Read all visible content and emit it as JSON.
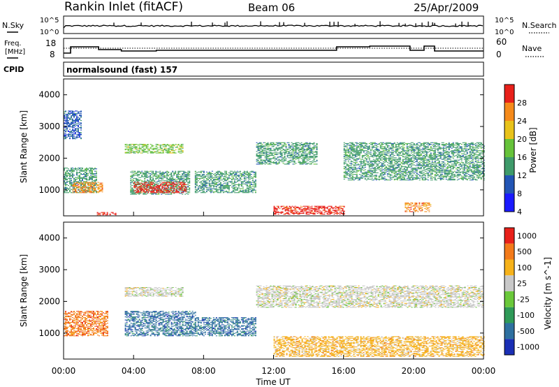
{
  "header": {
    "station": "Rankin Inlet (fitACF)",
    "beam": "Beam 06",
    "date": "25/Apr/2009"
  },
  "nsky_panel": {
    "label": "N.Sky",
    "left_ticks": [
      "10^5",
      "10^0"
    ],
    "right_ticks": [
      "10^5",
      "10^0"
    ],
    "right_label": "N.Search"
  },
  "freq_panel": {
    "label_line1": "Freq.",
    "label_line2": "[MHz]",
    "left_ticks": [
      "18",
      "8"
    ],
    "right_ticks": [
      "60",
      "0"
    ],
    "right_label": "Nave"
  },
  "cpid_panel": {
    "label": "CPID",
    "mode": "normalsound (fast) 157"
  },
  "chart_data": [
    {
      "type": "heatmap",
      "title": "Power",
      "ylabel": "Slant Range [km]",
      "xlabel": "Time UT",
      "x_ticks": [
        "00:00",
        "04:00",
        "08:00",
        "12:00",
        "16:00",
        "20:00",
        "00:00"
      ],
      "x_range_hours": [
        0,
        24
      ],
      "y_ticks": [
        1000,
        2000,
        3000,
        4000
      ],
      "y_range_km": [
        180,
        4500
      ],
      "colorbar": {
        "label": "Power [dB]",
        "ticks": [
          "4",
          "8",
          "12",
          "16",
          "20",
          "24",
          "28"
        ],
        "colors": [
          "#1a1aff",
          "#2255b5",
          "#3e9a6a",
          "#66c23a",
          "#e8c21a",
          "#f58a1a",
          "#e8201a"
        ]
      },
      "regions": [
        {
          "t0": 0.0,
          "t1": 1.9,
          "r0": 900,
          "r1": 1700,
          "level": 2
        },
        {
          "t0": 0.5,
          "t1": 2.2,
          "r0": 900,
          "r1": 1250,
          "level": 5
        },
        {
          "t0": 1.9,
          "t1": 3.0,
          "r0": 200,
          "r1": 300,
          "level": 6
        },
        {
          "t0": 3.8,
          "t1": 7.2,
          "r0": 850,
          "r1": 1600,
          "level": 2
        },
        {
          "t0": 4.0,
          "t1": 7.0,
          "r0": 900,
          "r1": 1250,
          "level": 6
        },
        {
          "t0": 3.5,
          "t1": 6.8,
          "r0": 2150,
          "r1": 2450,
          "level": 3
        },
        {
          "t0": 7.5,
          "t1": 11.0,
          "r0": 900,
          "r1": 1600,
          "level": 2
        },
        {
          "t0": 11.0,
          "t1": 14.5,
          "r0": 1800,
          "r1": 2500,
          "level": 2
        },
        {
          "t0": 12.0,
          "t1": 16.0,
          "r0": 220,
          "r1": 480,
          "level": 6
        },
        {
          "t0": 16.0,
          "t1": 24.0,
          "r0": 1300,
          "r1": 2500,
          "level": 2
        },
        {
          "t0": 19.5,
          "t1": 21.0,
          "r0": 300,
          "r1": 600,
          "level": 5
        },
        {
          "t0": 0.0,
          "t1": 1.0,
          "r0": 2600,
          "r1": 3500,
          "level": 1
        }
      ]
    },
    {
      "type": "heatmap",
      "title": "Velocity",
      "ylabel": "Slant Range [km]",
      "xlabel": "Time UT",
      "x_ticks": [
        "00:00",
        "04:00",
        "08:00",
        "12:00",
        "16:00",
        "20:00",
        "00:00"
      ],
      "x_range_hours": [
        0,
        24
      ],
      "y_ticks": [
        1000,
        2000,
        3000,
        4000
      ],
      "y_range_km": [
        180,
        4500
      ],
      "colorbar": {
        "label": "Velocity [m s^-1]",
        "ticks": [
          "1000",
          "500",
          "100",
          "25",
          "-25",
          "-100",
          "-500",
          "-1000"
        ],
        "colors": [
          "#1a2fb5",
          "#2e70a0",
          "#2f9a58",
          "#6ac83a",
          "#c8c8c8",
          "#f6b21a",
          "#f37a1a",
          "#e8201a"
        ]
      },
      "regions": [
        {
          "t0": 0.0,
          "t1": 2.5,
          "r0": 900,
          "r1": 1700,
          "level": 6
        },
        {
          "t0": 3.5,
          "t1": 7.5,
          "r0": 900,
          "r1": 1700,
          "level": 1
        },
        {
          "t0": 3.5,
          "t1": 6.8,
          "r0": 2150,
          "r1": 2450,
          "level": 4
        },
        {
          "t0": 11.0,
          "t1": 24.0,
          "r0": 1800,
          "r1": 2500,
          "level": 4
        },
        {
          "t0": 12.0,
          "t1": 24.0,
          "r0": 250,
          "r1": 900,
          "level": 5
        },
        {
          "t0": 7.5,
          "t1": 11.0,
          "r0": 900,
          "r1": 1500,
          "level": 1
        }
      ]
    }
  ]
}
